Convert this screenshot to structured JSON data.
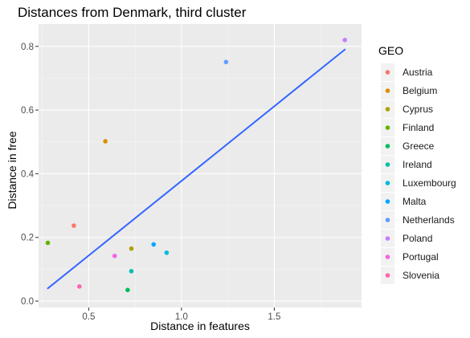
{
  "chart_data": {
    "type": "scatter",
    "title": "Distances from Denmark, third cluster",
    "xlabel": "Distance in features",
    "ylabel": "Distance in free",
    "legend_title": "GEO",
    "legend_position": "right",
    "grid": true,
    "xlim": [
      0.23,
      1.97
    ],
    "ylim": [
      -0.02,
      0.87
    ],
    "x_ticks": [
      0.5,
      1.0,
      1.5
    ],
    "x_tick_labels": [
      "0.5",
      "1.0",
      "1.5"
    ],
    "y_ticks": [
      0.0,
      0.2,
      0.4,
      0.6,
      0.8
    ],
    "y_tick_labels": [
      "0.0",
      "0.2",
      "0.4",
      "0.6",
      "0.8"
    ],
    "series": [
      {
        "name": "Austria",
        "color": "#F8766D",
        "x": 0.42,
        "y": 0.237
      },
      {
        "name": "Belgium",
        "color": "#DB8E00",
        "x": 0.59,
        "y": 0.502
      },
      {
        "name": "Cyprus",
        "color": "#AEA200",
        "x": 0.73,
        "y": 0.165
      },
      {
        "name": "Finland",
        "color": "#64B200",
        "x": 0.28,
        "y": 0.183
      },
      {
        "name": "Greece",
        "color": "#00BD5C",
        "x": 0.71,
        "y": 0.035
      },
      {
        "name": "Ireland",
        "color": "#00C1A7",
        "x": 0.73,
        "y": 0.094
      },
      {
        "name": "Luxembourg",
        "color": "#00BADE",
        "x": 0.92,
        "y": 0.152
      },
      {
        "name": "Malta",
        "color": "#00A6FF",
        "x": 0.85,
        "y": 0.178
      },
      {
        "name": "Netherlands",
        "color": "#619CFF",
        "x": 1.24,
        "y": 0.751
      },
      {
        "name": "Poland",
        "color": "#C77CFF",
        "x": 1.88,
        "y": 0.82
      },
      {
        "name": "Portugal",
        "color": "#F564E3",
        "x": 0.64,
        "y": 0.142
      },
      {
        "name": "Slovenia",
        "color": "#FF64B0",
        "x": 0.45,
        "y": 0.046
      }
    ],
    "trend_line": {
      "color": "#3366FF",
      "x": [
        0.28,
        1.88
      ],
      "y": [
        0.04,
        0.79
      ]
    }
  }
}
